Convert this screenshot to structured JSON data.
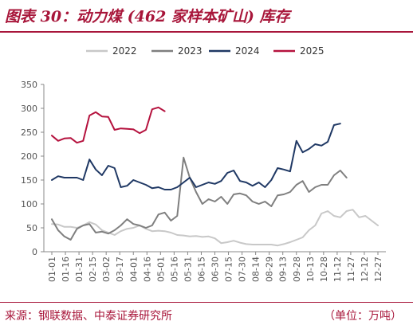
{
  "title": "图表 30：动力煤 (462 家样本矿山) 库存",
  "source": "来源：钢联数据、中泰证券研究所",
  "unit": "（单位：万吨）",
  "chart_data": {
    "type": "line",
    "title": "图表 30：动力煤 (462 家样本矿山) 库存",
    "xlabel": "",
    "ylabel": "",
    "ylim": [
      0,
      350
    ],
    "yticks": [
      0,
      50,
      100,
      150,
      200,
      250,
      300,
      350
    ],
    "legend_position": "top",
    "grid": false,
    "x_tick_labels": [
      "01-01",
      "01-16",
      "01-31",
      "02-15",
      "03-02",
      "03-17",
      "04-01",
      "04-16",
      "05-01",
      "05-16",
      "05-31",
      "06-15",
      "06-30",
      "07-15",
      "07-30",
      "08-14",
      "08-29",
      "09-13",
      "09-28",
      "10-13",
      "10-28",
      "11-12",
      "11-27",
      "12-12",
      "12-27"
    ],
    "series": [
      {
        "name": "2022",
        "color": "#c8c8c8",
        "values": [
          58,
          57,
          52,
          52,
          50,
          55,
          62,
          57,
          45,
          40,
          35,
          43,
          48,
          50,
          55,
          48,
          43,
          44,
          43,
          40,
          35,
          34,
          32,
          33,
          31,
          32,
          28,
          18,
          20,
          23,
          19,
          16,
          15,
          15,
          15,
          15,
          13,
          16,
          20,
          25,
          30,
          45,
          55,
          80,
          85,
          75,
          72,
          85,
          88,
          72,
          75,
          65,
          55
        ]
      },
      {
        "name": "2023",
        "color": "#7f7f7f",
        "values": [
          68,
          45,
          32,
          25,
          48,
          55,
          58,
          40,
          42,
          38,
          45,
          55,
          68,
          58,
          55,
          50,
          55,
          78,
          82,
          65,
          75,
          197,
          155,
          125,
          100,
          110,
          105,
          115,
          100,
          120,
          122,
          118,
          105,
          100,
          105,
          95,
          118,
          120,
          125,
          140,
          148,
          125,
          135,
          140,
          140,
          160,
          170,
          155
        ]
      },
      {
        "name": "2024",
        "color": "#1f3864",
        "values": [
          150,
          158,
          155,
          155,
          155,
          150,
          193,
          172,
          160,
          180,
          175,
          135,
          138,
          150,
          145,
          140,
          133,
          135,
          130,
          130,
          135,
          145,
          155,
          135,
          140,
          145,
          142,
          148,
          165,
          170,
          148,
          145,
          138,
          145,
          135,
          150,
          175,
          172,
          168,
          232,
          208,
          215,
          225,
          222,
          230,
          265,
          268
        ]
      },
      {
        "name": "2025",
        "color": "#b5123e",
        "values": [
          243,
          232,
          237,
          238,
          228,
          232,
          285,
          292,
          283,
          282,
          255,
          258,
          257,
          256,
          248,
          255,
          298,
          302,
          294
        ]
      }
    ]
  }
}
